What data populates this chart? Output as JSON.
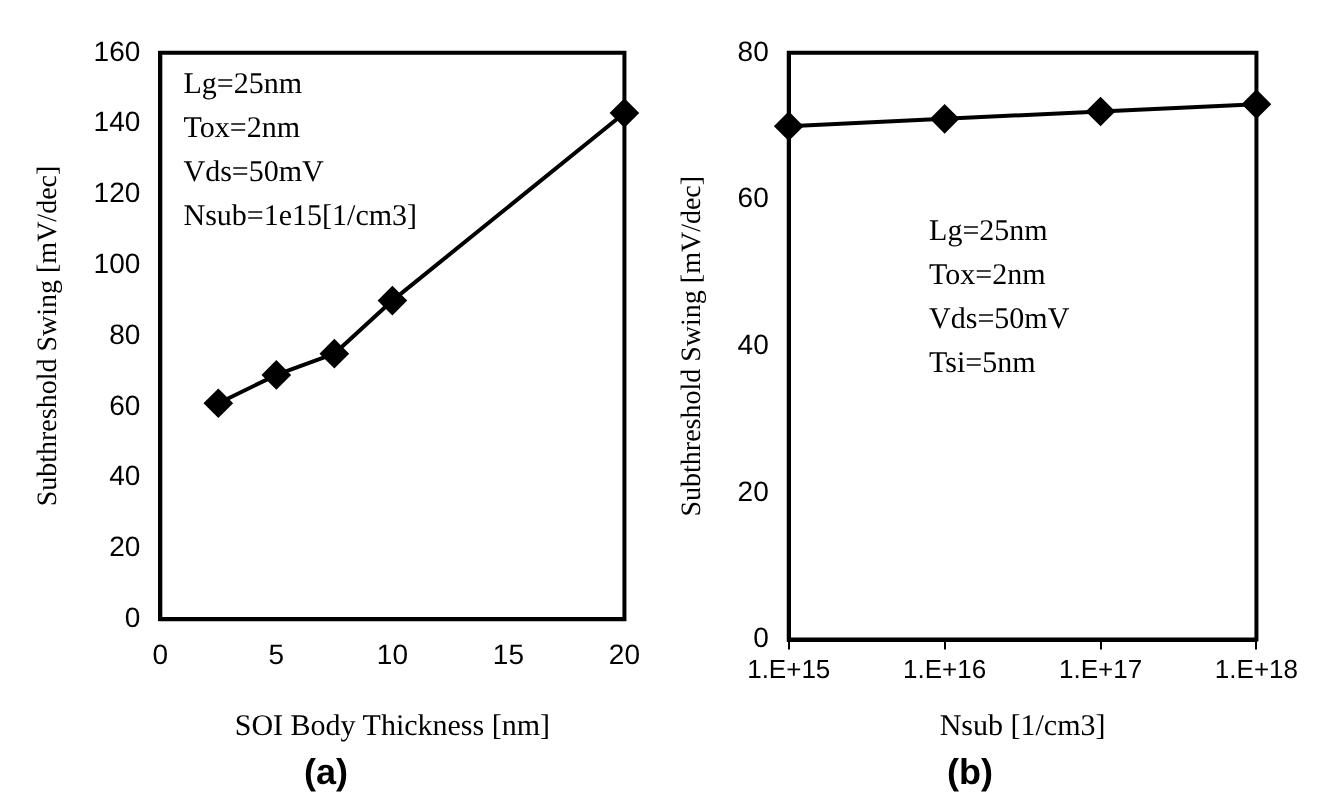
{
  "chart_data": [
    {
      "type": "line",
      "title": "(a)",
      "xlabel": "SOI Body Thickness [nm]",
      "ylabel": "Subthreshold Swing [mV/dec]",
      "x": [
        2.5,
        5,
        7.5,
        10,
        20
      ],
      "series": [
        {
          "color": "#000000",
          "values": [
            61,
            69,
            75,
            90,
            143
          ]
        }
      ],
      "xlim": [
        0,
        20
      ],
      "xticks": [
        0,
        5,
        10,
        15,
        20
      ],
      "ylim": [
        0,
        160
      ],
      "yticks": [
        0,
        20,
        40,
        60,
        80,
        100,
        120,
        140,
        160
      ],
      "annotations": [
        "Lg=25nm",
        "Tox=2nm",
        "Vds=50mV",
        "Nsub=1e15[1/cm3]"
      ],
      "marker": "diamond",
      "grid": false,
      "legend": false
    },
    {
      "type": "line",
      "title": "(b)",
      "xlabel": "Nsub [1/cm3]",
      "ylabel": "Subthreshold Swing [mV/dec]",
      "categories": [
        "1.E+15",
        "1.E+16",
        "1.E+17",
        "1.E+18"
      ],
      "series": [
        {
          "color": "#000000",
          "values": [
            70,
            71,
            72,
            73
          ]
        }
      ],
      "ylim": [
        0,
        80
      ],
      "yticks": [
        0,
        20,
        40,
        60,
        80
      ],
      "annotations": [
        "Lg=25nm",
        "Tox=2nm",
        "Vds=50mV",
        "Tsi=5nm"
      ],
      "marker": "diamond",
      "grid": false,
      "legend": false
    }
  ]
}
